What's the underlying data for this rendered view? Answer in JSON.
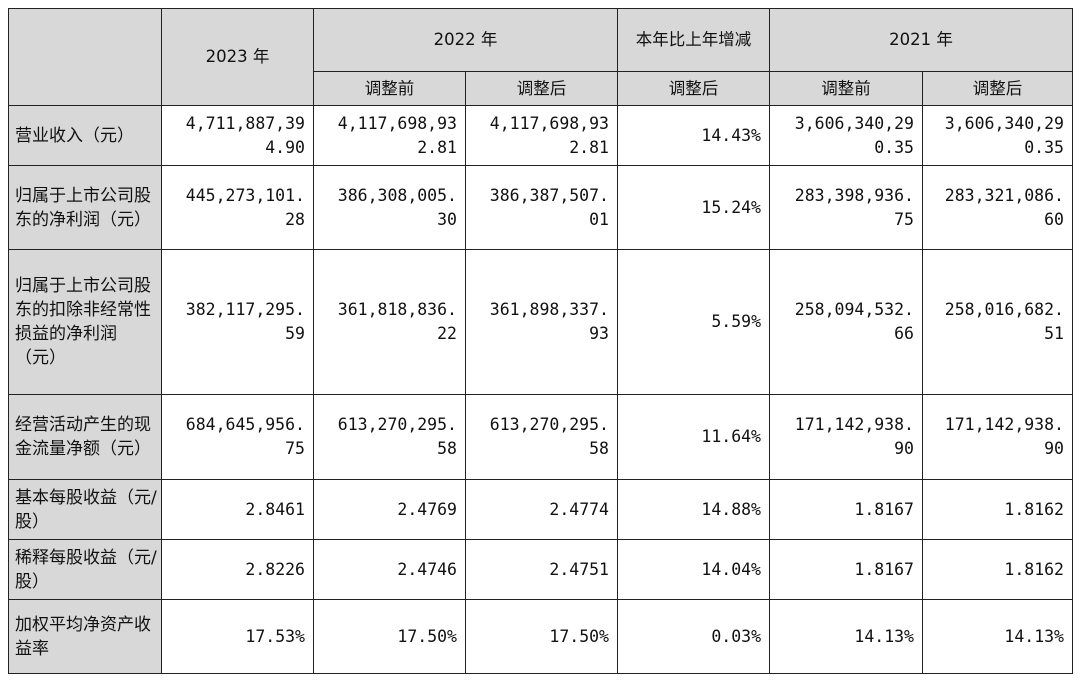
{
  "header": {
    "year_2023": "2023 年",
    "year_2022": "2022 年",
    "change": "本年比上年增减",
    "year_2021": "2021 年",
    "before_adjust": "调整前",
    "after_adjust": "调整后"
  },
  "rows": [
    {
      "label": "营业收入（元）",
      "v2023": [
        "4,711,887,39",
        "4.90"
      ],
      "v2022_before": [
        "4,117,698,93",
        "2.81"
      ],
      "v2022_after": [
        "4,117,698,93",
        "2.81"
      ],
      "change": "14.43%",
      "v2021_before": [
        "3,606,340,29",
        "0.35"
      ],
      "v2021_after": [
        "3,606,340,29",
        "0.35"
      ]
    },
    {
      "label": "归属于上市公司股东的净利润（元）",
      "v2023": [
        "445,273,101.",
        "28"
      ],
      "v2022_before": [
        "386,308,005.",
        "30"
      ],
      "v2022_after": [
        "386,387,507.",
        "01"
      ],
      "change": "15.24%",
      "v2021_before": [
        "283,398,936.",
        "75"
      ],
      "v2021_after": [
        "283,321,086.",
        "60"
      ]
    },
    {
      "label": "归属于上市公司股东的扣除非经常性损益的净利润（元）",
      "v2023": [
        "382,117,295.",
        "59"
      ],
      "v2022_before": [
        "361,818,836.",
        "22"
      ],
      "v2022_after": [
        "361,898,337.",
        "93"
      ],
      "change": "5.59%",
      "v2021_before": [
        "258,094,532.",
        "66"
      ],
      "v2021_after": [
        "258,016,682.",
        "51"
      ]
    },
    {
      "label": "经营活动产生的现金流量净额（元）",
      "v2023": [
        "684,645,956.",
        "75"
      ],
      "v2022_before": [
        "613,270,295.",
        "58"
      ],
      "v2022_after": [
        "613,270,295.",
        "58"
      ],
      "change": "11.64%",
      "v2021_before": [
        "171,142,938.",
        "90"
      ],
      "v2021_after": [
        "171,142,938.",
        "90"
      ]
    },
    {
      "label": "基本每股收益（元/股）",
      "v2023": [
        "2.8461"
      ],
      "v2022_before": [
        "2.4769"
      ],
      "v2022_after": [
        "2.4774"
      ],
      "change": "14.88%",
      "v2021_before": [
        "1.8167"
      ],
      "v2021_after": [
        "1.8162"
      ]
    },
    {
      "label": "稀释每股收益（元/股）",
      "v2023": [
        "2.8226"
      ],
      "v2022_before": [
        "2.4746"
      ],
      "v2022_after": [
        "2.4751"
      ],
      "change": "14.04%",
      "v2021_before": [
        "1.8167"
      ],
      "v2021_after": [
        "1.8162"
      ]
    },
    {
      "label": "加权平均净资产收益率",
      "v2023": [
        "17.53%"
      ],
      "v2022_before": [
        "17.50%"
      ],
      "v2022_after": [
        "17.50%"
      ],
      "change": "0.03%",
      "v2021_before": [
        "14.13%"
      ],
      "v2021_after": [
        "14.13%"
      ]
    }
  ]
}
